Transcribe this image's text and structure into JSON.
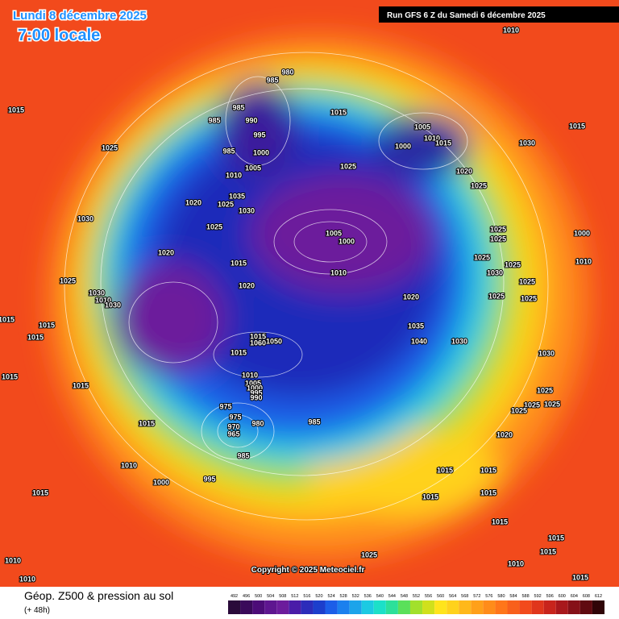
{
  "header": {
    "date": "Lundi 8 décembre 2025",
    "time": "7:00 locale",
    "run": "Run GFS 6 Z du Samedi 6 décembre 2025"
  },
  "map": {
    "copyright": "Copyright © 2025 Meteociel.fr",
    "isobar_labels": [
      1010,
      1015,
      985,
      980,
      985,
      985,
      990,
      995,
      1000,
      985,
      1005,
      1010,
      1025,
      1035,
      1020,
      1025,
      1030,
      1015,
      1005,
      1000,
      1010,
      1015,
      1025,
      1030,
      1015,
      1020,
      1025,
      1030,
      1025,
      1005,
      1000,
      1025,
      1025,
      1000,
      1020,
      1015,
      1010,
      1025,
      1030,
      1025,
      1010,
      1025,
      1030,
      1020,
      1025,
      1025,
      1025,
      1010,
      1030,
      1020,
      1015,
      1015,
      1015,
      1035,
      1040,
      1030,
      1015,
      1050,
      1060,
      1015,
      1030,
      1015,
      1015,
      1010,
      1005,
      1000,
      995,
      990,
      1025,
      1025,
      1025,
      1025,
      975,
      975,
      980,
      985,
      970,
      965,
      1015,
      1020,
      985,
      1010,
      1015,
      1015,
      1000,
      995,
      1015,
      1015,
      1015,
      1015,
      1015,
      1015,
      1025,
      1010,
      1010,
      1010,
      1015
    ]
  },
  "footer": {
    "title": "Géop. Z500 & pression au sol",
    "subtitle": "(+ 48h)",
    "scale": [
      492,
      496,
      500,
      504,
      508,
      512,
      516,
      520,
      524,
      528,
      532,
      536,
      540,
      544,
      548,
      552,
      556,
      560,
      564,
      568,
      572,
      576,
      580,
      584,
      588,
      592,
      596,
      600,
      604,
      608,
      612
    ]
  }
}
